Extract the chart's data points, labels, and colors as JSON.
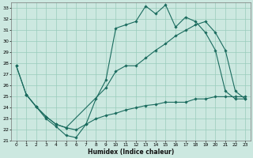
{
  "xlabel": "Humidex (Indice chaleur)",
  "bg_color": "#cce8e0",
  "grid_color": "#99ccbb",
  "line_color": "#1a6b5e",
  "xlim": [
    -0.5,
    23.5
  ],
  "ylim": [
    21,
    33.5
  ],
  "xticks": [
    0,
    1,
    2,
    3,
    4,
    5,
    6,
    7,
    8,
    9,
    10,
    11,
    12,
    13,
    14,
    15,
    16,
    17,
    18,
    19,
    20,
    21,
    22,
    23
  ],
  "yticks": [
    21,
    22,
    23,
    24,
    25,
    26,
    27,
    28,
    29,
    30,
    31,
    32,
    33
  ],
  "line1_x": [
    0,
    1,
    2,
    3,
    4,
    5,
    6,
    7,
    8,
    9,
    10,
    11,
    12,
    13,
    14,
    15,
    16,
    17,
    18,
    19,
    20,
    21,
    22,
    23
  ],
  "line1_y": [
    27.8,
    25.2,
    24.1,
    23.0,
    22.3,
    21.5,
    21.3,
    22.5,
    24.8,
    26.5,
    31.2,
    31.5,
    31.8,
    33.2,
    32.5,
    33.3,
    31.3,
    32.2,
    31.8,
    30.8,
    29.2,
    25.5,
    24.8,
    24.8
  ],
  "line2_x": [
    0,
    1,
    2,
    3,
    4,
    5,
    9,
    10,
    11,
    12,
    13,
    14,
    15,
    16,
    17,
    18,
    19,
    20,
    21,
    22,
    23
  ],
  "line2_y": [
    27.8,
    25.2,
    24.1,
    23.2,
    22.5,
    22.2,
    25.8,
    27.3,
    27.8,
    27.8,
    28.5,
    29.2,
    29.8,
    30.5,
    31.0,
    31.5,
    31.8,
    30.8,
    29.2,
    25.5,
    24.8
  ],
  "line3_x": [
    1,
    2,
    3,
    4,
    5,
    6,
    7,
    8,
    9,
    10,
    11,
    12,
    13,
    14,
    15,
    16,
    17,
    18,
    19,
    20,
    21,
    22,
    23
  ],
  "line3_y": [
    25.2,
    24.1,
    23.2,
    22.5,
    22.2,
    22.0,
    22.5,
    23.0,
    23.3,
    23.5,
    23.8,
    24.0,
    24.2,
    24.3,
    24.5,
    24.5,
    24.5,
    24.8,
    24.8,
    25.0,
    25.0,
    25.0,
    25.0
  ]
}
